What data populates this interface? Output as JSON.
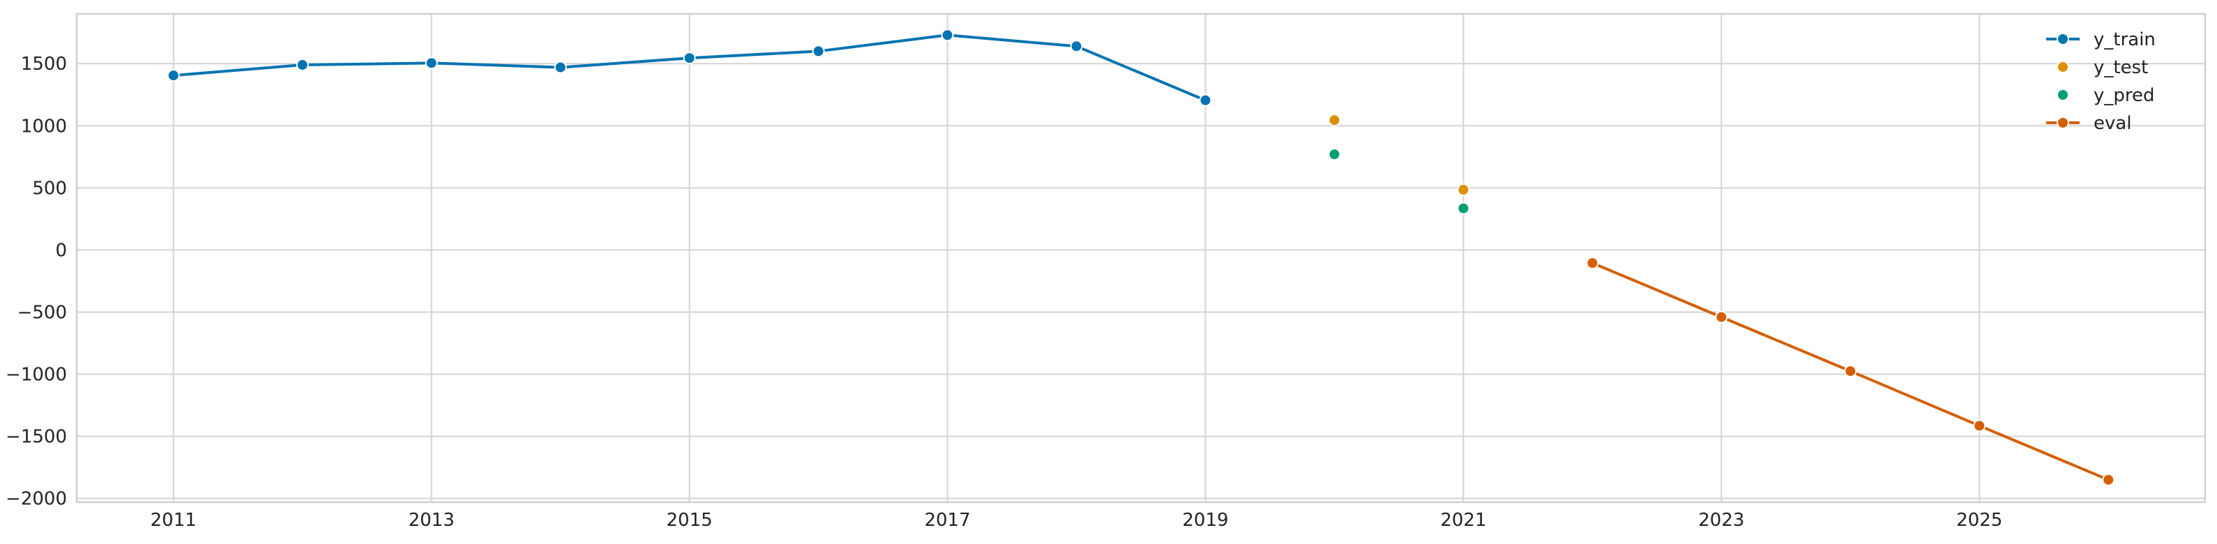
{
  "chart_data": {
    "type": "line",
    "title": "",
    "xlabel": "",
    "ylabel": "",
    "grid": true,
    "legend_position": "top-right",
    "xlim": [
      2010.25,
      2026.75
    ],
    "ylim": [
      -2030,
      1900
    ],
    "x_ticks": [
      2011,
      2013,
      2015,
      2017,
      2019,
      2021,
      2023,
      2025
    ],
    "x_tick_labels": [
      "2011",
      "2013",
      "2015",
      "2017",
      "2019",
      "2021",
      "2023",
      "2025"
    ],
    "y_ticks": [
      1500,
      1000,
      500,
      0,
      -500,
      -1000,
      -1500,
      -2000
    ],
    "y_tick_labels": [
      "1500",
      "1000",
      "500",
      "0",
      "−500",
      "−1000",
      "−1500",
      "−2000"
    ],
    "series": [
      {
        "name": "y_train",
        "style": "line-markers",
        "color": "#0173b2",
        "x": [
          2011,
          2012,
          2013,
          2014,
          2015,
          2016,
          2017,
          2018,
          2019
        ],
        "y": [
          1405,
          1490,
          1505,
          1470,
          1545,
          1600,
          1730,
          1640,
          1205
        ]
      },
      {
        "name": "y_test",
        "style": "markers",
        "color": "#de8f05",
        "x": [
          2020,
          2021
        ],
        "y": [
          1045,
          485
        ]
      },
      {
        "name": "y_pred",
        "style": "markers",
        "color": "#029e73",
        "x": [
          2020,
          2021
        ],
        "y": [
          770,
          335
        ]
      },
      {
        "name": "eval",
        "style": "line-markers",
        "color": "#d55e00",
        "x": [
          2022,
          2023,
          2024,
          2025,
          2026
        ],
        "y": [
          -105,
          -540,
          -975,
          -1415,
          -1850
        ]
      }
    ]
  }
}
